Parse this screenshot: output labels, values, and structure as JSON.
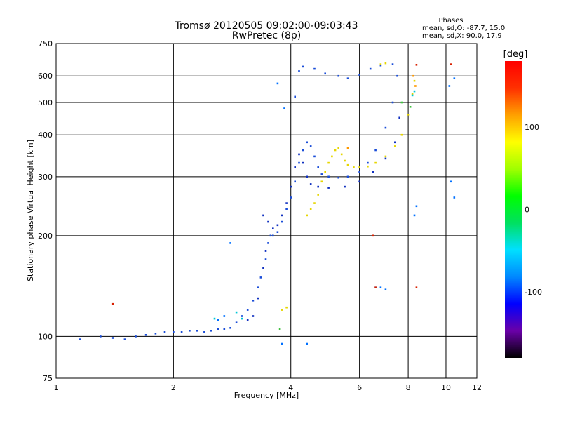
{
  "chart_data": {
    "type": "scatter",
    "title": "Tromsø 20120505 09:02:00-09:03:43",
    "subtitle": "RwPretec (8p)",
    "xlabel": "Frequency [MHz]",
    "ylabel": "Stationary phase Virtual Height [km]",
    "x_scale": "log",
    "y_scale": "log",
    "xlim": [
      1,
      12
    ],
    "ylim": [
      75,
      750
    ],
    "x_ticks": [
      1,
      2,
      4,
      6,
      8,
      10,
      12
    ],
    "y_ticks": [
      75,
      100,
      200,
      300,
      400,
      500,
      600,
      750
    ],
    "grid": true,
    "phase_box": {
      "title": "Phases",
      "line1": "mean, sd,O: -87.7, 15.0",
      "line2": "mean, sd,X:  90.0, 17.9"
    },
    "colorbar": {
      "label": "[deg]",
      "ticks": [
        100,
        0,
        -100
      ],
      "range": [
        -180,
        180
      ],
      "stops": [
        "#000000",
        "#6a00a8",
        "#0000ff",
        "#0088ff",
        "#00e0ff",
        "#00e060",
        "#00ff00",
        "#a0ff00",
        "#ffff00",
        "#ffa000",
        "#ff3000",
        "#ff0000"
      ]
    },
    "series": [
      {
        "color": "#1a4dd8",
        "points": [
          [
            1.15,
            98
          ],
          [
            1.3,
            100
          ],
          [
            1.4,
            99
          ],
          [
            1.5,
            98
          ],
          [
            1.6,
            100
          ],
          [
            1.7,
            101
          ],
          [
            1.8,
            102
          ],
          [
            1.9,
            103
          ],
          [
            2.0,
            103
          ],
          [
            2.1,
            103
          ],
          [
            2.2,
            104
          ],
          [
            2.3,
            104
          ],
          [
            2.4,
            103
          ],
          [
            2.5,
            104
          ],
          [
            2.6,
            105
          ],
          [
            2.7,
            105
          ],
          [
            2.8,
            106
          ],
          [
            2.9,
            110
          ],
          [
            3.0,
            115
          ],
          [
            3.1,
            120
          ],
          [
            3.2,
            128
          ],
          [
            3.3,
            140
          ],
          [
            3.35,
            150
          ],
          [
            3.45,
            170
          ],
          [
            3.5,
            190
          ],
          [
            3.55,
            200
          ],
          [
            3.6,
            200
          ],
          [
            3.7,
            205
          ],
          [
            3.8,
            220
          ],
          [
            3.9,
            240
          ],
          [
            4.0,
            260
          ],
          [
            4.1,
            290
          ],
          [
            4.2,
            330
          ],
          [
            4.3,
            360
          ],
          [
            4.4,
            380
          ],
          [
            4.5,
            370
          ],
          [
            4.6,
            345
          ],
          [
            4.7,
            320
          ],
          [
            4.8,
            305
          ],
          [
            5.0,
            300
          ],
          [
            5.3,
            298
          ],
          [
            5.6,
            300
          ],
          [
            6.0,
            310
          ],
          [
            6.3,
            330
          ],
          [
            6.6,
            360
          ],
          [
            7.0,
            420
          ],
          [
            7.3,
            500
          ],
          [
            7.5,
            600
          ],
          [
            4.1,
            520
          ],
          [
            4.2,
            620
          ],
          [
            4.3,
            640
          ],
          [
            4.6,
            630
          ],
          [
            4.9,
            610
          ],
          [
            5.3,
            600
          ],
          [
            5.6,
            590
          ],
          [
            6.0,
            605
          ],
          [
            6.4,
            630
          ],
          [
            6.8,
            645
          ],
          [
            7.3,
            650
          ]
        ]
      },
      {
        "color": "#1030c0",
        "points": [
          [
            3.4,
            230
          ],
          [
            3.5,
            220
          ],
          [
            3.6,
            210
          ],
          [
            3.7,
            215
          ],
          [
            3.8,
            230
          ],
          [
            3.9,
            250
          ],
          [
            4.0,
            280
          ],
          [
            4.1,
            320
          ],
          [
            4.2,
            350
          ],
          [
            4.3,
            330
          ],
          [
            4.4,
            300
          ],
          [
            4.5,
            285
          ],
          [
            4.7,
            280
          ],
          [
            5.0,
            278
          ],
          [
            5.5,
            280
          ],
          [
            6.0,
            290
          ],
          [
            6.5,
            310
          ],
          [
            7.0,
            340
          ],
          [
            7.4,
            380
          ],
          [
            7.6,
            450
          ],
          [
            3.4,
            160
          ],
          [
            3.45,
            180
          ],
          [
            3.3,
            130
          ],
          [
            3.2,
            115
          ],
          [
            3.1,
            112
          ]
        ]
      },
      {
        "color": "#0070ff",
        "points": [
          [
            2.8,
            190
          ],
          [
            2.7,
            115
          ],
          [
            2.6,
            112
          ],
          [
            3.8,
            95
          ],
          [
            4.4,
            95
          ],
          [
            6.6,
            140
          ],
          [
            6.8,
            140
          ],
          [
            7.0,
            138
          ],
          [
            8.3,
            230
          ],
          [
            8.4,
            245
          ],
          [
            10.3,
            290
          ],
          [
            10.5,
            260
          ],
          [
            10.2,
            560
          ],
          [
            10.5,
            590
          ],
          [
            3.7,
            570
          ],
          [
            3.85,
            480
          ]
        ]
      },
      {
        "color": "#e6d600",
        "points": [
          [
            4.4,
            230
          ],
          [
            4.5,
            240
          ],
          [
            4.6,
            250
          ],
          [
            4.7,
            265
          ],
          [
            4.8,
            290
          ],
          [
            4.9,
            310
          ],
          [
            5.0,
            330
          ],
          [
            5.1,
            345
          ],
          [
            5.2,
            360
          ],
          [
            5.3,
            365
          ],
          [
            5.4,
            350
          ],
          [
            5.5,
            335
          ],
          [
            5.6,
            325
          ],
          [
            5.8,
            320
          ],
          [
            6.0,
            320
          ],
          [
            6.3,
            322
          ],
          [
            6.6,
            330
          ],
          [
            7.0,
            345
          ],
          [
            7.4,
            370
          ],
          [
            7.7,
            400
          ],
          [
            8.0,
            460
          ],
          [
            8.2,
            530
          ],
          [
            8.3,
            580
          ],
          [
            6.8,
            650
          ],
          [
            7.0,
            655
          ],
          [
            3.8,
            120
          ],
          [
            3.9,
            122
          ]
        ]
      },
      {
        "color": "#ff9900",
        "points": [
          [
            8.25,
            600
          ],
          [
            8.35,
            560
          ],
          [
            5.6,
            365
          ]
        ]
      },
      {
        "color": "#d82000",
        "points": [
          [
            1.4,
            125
          ],
          [
            6.5,
            200
          ],
          [
            6.6,
            140
          ],
          [
            8.4,
            140
          ],
          [
            8.4,
            648
          ],
          [
            10.3,
            650
          ]
        ]
      },
      {
        "color": "#00c8d8",
        "points": [
          [
            2.55,
            113
          ],
          [
            2.9,
            118
          ],
          [
            3.0,
            113
          ],
          [
            8.2,
            525
          ],
          [
            8.3,
            540
          ]
        ]
      },
      {
        "color": "#40c040",
        "points": [
          [
            8.1,
            485
          ],
          [
            7.7,
            500
          ],
          [
            3.75,
            105
          ]
        ]
      }
    ]
  }
}
